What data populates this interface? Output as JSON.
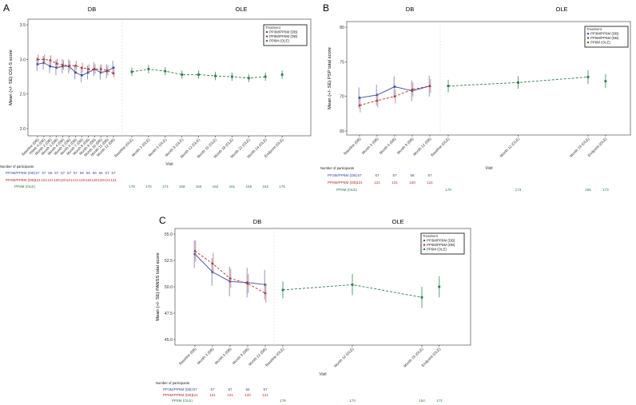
{
  "colors": {
    "pp3m": "#3c4a9e",
    "pp6m": "#b0302a",
    "ole": "#2e7a4c",
    "pp3m_err": "#8f95c4",
    "pp6m_err": "#c98b8b",
    "ole_err": "#5c9e72"
  },
  "chart_data": [
    {
      "type": "line",
      "panel_label": "A",
      "header_db": "DB",
      "header_ole": "OLE",
      "ylabel": "Mean (+/- SE) CGI-S score",
      "xlabel": "Visit",
      "yticks": [
        "2.0",
        "2.5",
        "3.0",
        "3.5"
      ],
      "ylim": [
        2.0,
        3.5
      ],
      "legend": {
        "title": "Treatment",
        "placement": "top-right",
        "entries": [
          "PP3M/PP6M (DB)",
          "PP6M/PP6M (DB)",
          "PP6M (OLE)"
        ]
      },
      "db_x_months": [
        0,
        1,
        2,
        3,
        4,
        5,
        6,
        7,
        8,
        9,
        10,
        11,
        12
      ],
      "db_labels": [
        "Baseline (DB)",
        "Week 4 (DB)",
        "Month 2 (DB)",
        "Month 3 (DB)",
        "Month 4 (DB)",
        "Month 5 (DB)",
        "Month 6 (DB)",
        "Month 7 (DB)",
        "Month 8 (DB)",
        "Month 9 (DB)",
        "Month 10 (DB)",
        "Month 11 (DB)",
        "Month 12 (DB)"
      ],
      "ole_x_months": [
        0,
        3,
        6,
        9,
        12,
        15,
        18,
        21,
        24,
        27
      ],
      "ole_labels": [
        "Baseline (OLE)",
        "Month 3 (OLE)",
        "Month 6 (OLE)",
        "Month 9 (OLE)",
        "Month 12 (OLE)",
        "Month 15 (OLE)",
        "Month 18 (OLE)",
        "Month 21 (OLE)",
        "Month 24 (OLE)",
        "Endpoint (OLE)"
      ],
      "series": [
        {
          "name": "PP3M/PP6M (DB)",
          "values": [
            2.93,
            2.95,
            2.9,
            2.88,
            2.9,
            2.9,
            2.81,
            2.77,
            2.81,
            2.86,
            2.81,
            2.83,
            2.88
          ],
          "se": [
            0.1,
            0.1,
            0.1,
            0.11,
            0.1,
            0.1,
            0.1,
            0.1,
            0.1,
            0.1,
            0.1,
            0.1,
            0.1
          ]
        },
        {
          "name": "PP6M/PP6M (DB)",
          "values": [
            3.0,
            3.0,
            2.99,
            2.94,
            2.92,
            2.91,
            2.91,
            2.88,
            2.86,
            2.86,
            2.86,
            2.84,
            2.8
          ],
          "se": [
            0.07,
            0.07,
            0.07,
            0.07,
            0.07,
            0.07,
            0.07,
            0.07,
            0.07,
            0.07,
            0.07,
            0.07,
            0.06
          ]
        },
        {
          "name": "PP6M (OLE)",
          "values": [
            2.82,
            2.86,
            2.83,
            2.78,
            2.78,
            2.76,
            2.75,
            2.73,
            2.75,
            2.78
          ],
          "se": [
            0.06,
            0.06,
            0.06,
            0.06,
            0.06,
            0.06,
            0.06,
            0.06,
            0.06,
            0.06
          ]
        }
      ],
      "participants": {
        "title": "Number of participants",
        "pp3m_label": "PP3M/PP6M (DB)",
        "pp3m": [
          "57",
          "57",
          "56",
          "57",
          "57",
          "57",
          "57",
          "56",
          "56",
          "56",
          "56",
          "57",
          "57"
        ],
        "pp6m_label": "PP6M/PP6M (DB)",
        "pp6m": [
          "121",
          "121",
          "121",
          "120",
          "120",
          "121",
          "121",
          "120",
          "119",
          "120",
          "120",
          "121",
          "121"
        ],
        "ole_label": "PP6M (OLE)",
        "ole": [
          "178",
          "178",
          "174",
          "168",
          "165",
          "162",
          "161",
          "156",
          "152",
          "176"
        ]
      }
    },
    {
      "type": "line",
      "panel_label": "B",
      "header_db": "DB",
      "header_ole": "OLE",
      "ylabel": "Mean (+/- SE) PSP total score",
      "xlabel": "Visit",
      "yticks": [
        "65",
        "70",
        "75",
        "80"
      ],
      "ylim": [
        65,
        80
      ],
      "legend": {
        "title": "Treatment",
        "placement": "top-right",
        "entries": [
          "PP3M/PP6M (DB)",
          "PP6M/PP6M (DB)",
          "PP6M (OLE)"
        ]
      },
      "db_x_months": [
        0,
        3,
        6,
        9,
        12
      ],
      "db_labels": [
        "Baseline (DB)",
        "Month 3 (DB)",
        "Month 6 (DB)",
        "Month 9 (DB)",
        "Month 12 (DB)"
      ],
      "ole_x_months": [
        0,
        12,
        24,
        27
      ],
      "ole_labels": [
        "Baseline (OLE)",
        "Month 12 (OLE)",
        "Month 24 (OLE)",
        "Endpoint (OLE)"
      ],
      "series": [
        {
          "name": "PP3M/PP6M (DB)",
          "values": [
            69.8,
            70.2,
            71.4,
            70.8,
            71.5
          ],
          "se": [
            1.5,
            1.5,
            1.5,
            1.5,
            1.5
          ]
        },
        {
          "name": "PP6M/PP6M (DB)",
          "values": [
            68.7,
            69.4,
            70.0,
            71.0,
            71.5
          ],
          "se": [
            1.0,
            1.0,
            1.0,
            1.0,
            1.0
          ]
        },
        {
          "name": "PP6M (OLE)",
          "values": [
            71.5,
            72.0,
            72.8,
            72.2
          ],
          "se": [
            0.9,
            0.9,
            1.0,
            1.0
          ]
        }
      ],
      "participants": {
        "title": "Number of participants",
        "pp3m_label": "PP3M/PP6M (DB)",
        "pp3m": [
          "57",
          "57",
          "57",
          "56",
          "57"
        ],
        "pp6m_label": "PP6M/PP6M (DB)",
        "pp6m": [
          "121",
          "121",
          "121",
          "120",
          "121"
        ],
        "ole_label": "PP6M (OLE)",
        "ole": [
          "178",
          "173",
          "155",
          "173"
        ]
      }
    },
    {
      "type": "line",
      "panel_label": "C",
      "header_db": "DB",
      "header_ole": "OLE",
      "ylabel": "Mean (+/- SE) PANSS total score",
      "xlabel": "Visit",
      "yticks": [
        "45.0",
        "47.5",
        "50.0",
        "52.5",
        "55.0"
      ],
      "ylim": [
        45.0,
        55.0
      ],
      "legend": {
        "title": "Treatment",
        "placement": "top-right",
        "entries": [
          "PP3M/PP6M (DB)",
          "PP6M/PP6M (DB)",
          "PP6M (OLE)"
        ]
      },
      "db_x_months": [
        0,
        3,
        6,
        9,
        12
      ],
      "db_labels": [
        "Baseline (DB)",
        "Month 3 (DB)",
        "Month 6 (DB)",
        "Month 9 (DB)",
        "Month 12 (DB)"
      ],
      "ole_x_months": [
        0,
        12,
        24,
        27
      ],
      "ole_labels": [
        "Baseline (OLE)",
        "Month 12 (OLE)",
        "Month 24 (OLE)",
        "Endpoint (OLE)"
      ],
      "series": [
        {
          "name": "PP3M/PP6M (DB)",
          "values": [
            53.1,
            51.4,
            50.5,
            50.4,
            50.2
          ],
          "se": [
            1.3,
            1.3,
            1.4,
            1.4,
            1.4
          ]
        },
        {
          "name": "PP6M/PP6M (DB)",
          "values": [
            53.4,
            52.2,
            50.8,
            50.3,
            49.4
          ],
          "se": [
            1.0,
            1.0,
            0.9,
            0.9,
            0.9
          ]
        },
        {
          "name": "PP6M (OLE)",
          "values": [
            49.7,
            50.2,
            49.0,
            50.0
          ],
          "se": [
            0.8,
            1.0,
            1.0,
            1.0
          ]
        }
      ],
      "participants": {
        "title": "Number of participants",
        "pp3m_label": "PP3M/PP6M (DB)",
        "pp3m": [
          "57",
          "57",
          "57",
          "56",
          "57"
        ],
        "pp6m_label": "PP6M/PP6M (DB)",
        "pp6m": [
          "121",
          "121",
          "121",
          "120",
          "121"
        ],
        "ole_label": "PP6M (OLE)",
        "ole": [
          "178",
          "173",
          "154",
          "173"
        ]
      }
    }
  ]
}
